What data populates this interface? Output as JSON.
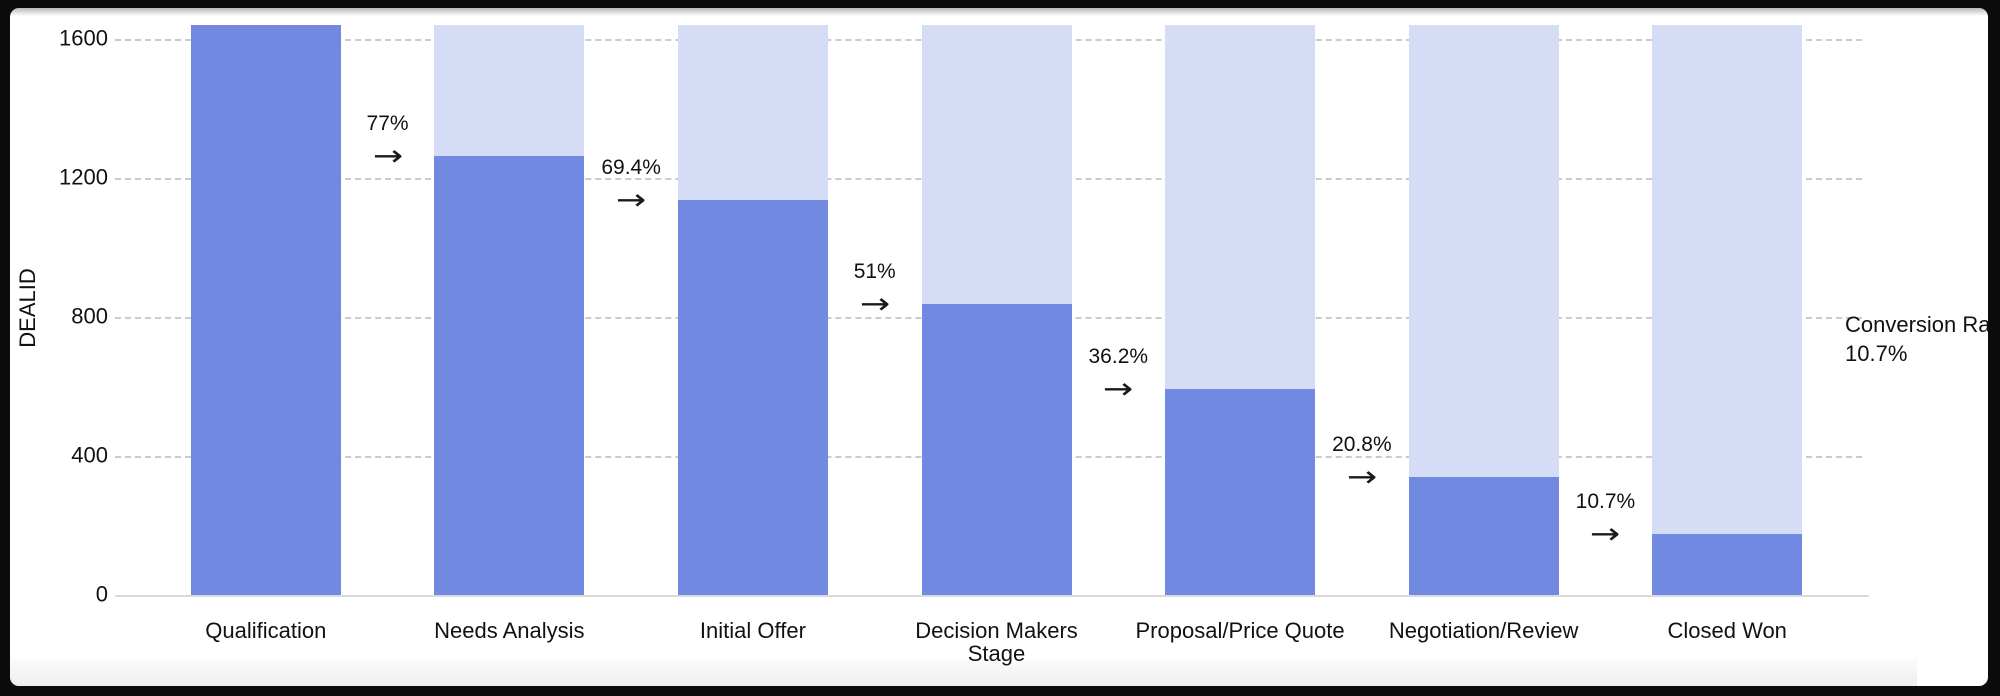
{
  "chart_data": {
    "type": "bar",
    "subtype": "funnel-stacked",
    "title": "",
    "xlabel": "Stage",
    "ylabel": "DEALID",
    "categories": [
      "Qualification",
      "Needs Analysis",
      "Initial Offer",
      "Decision Makers",
      "Proposal/Price Quote",
      "Negotiation/Review",
      "Closed Won"
    ],
    "values": [
      1640,
      1263,
      1138,
      836,
      594,
      341,
      175
    ],
    "background_bar_value": 1640,
    "conversion_labels": [
      "77%",
      "69.4%",
      "51%",
      "36.2%",
      "20.8%",
      "10.7%"
    ],
    "arrow_glyph": "→",
    "y_ticks": [
      0,
      400,
      800,
      1200,
      1600
    ],
    "ylim": [
      0,
      1640
    ],
    "grid": "dashed horizontal",
    "legend": "none",
    "final_annotation": {
      "line1": "Conversion Rate:",
      "line2": "10.7%"
    },
    "colors": {
      "bar": "#7189E0",
      "bar_background": "#D5DCF5",
      "gridline": "#CBCBCB",
      "axis_line": "#D9D9D9",
      "text": "#111111",
      "frame": "#0B0B0B",
      "panel": "#FFFFFF"
    }
  }
}
